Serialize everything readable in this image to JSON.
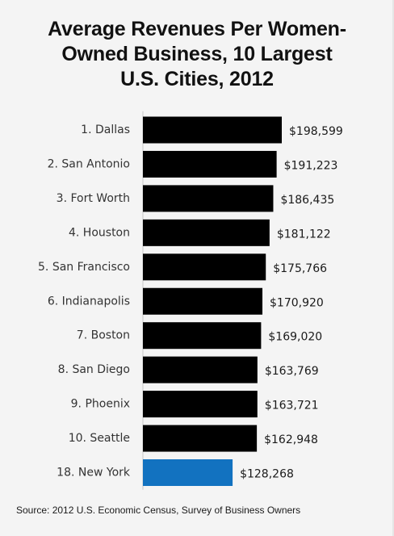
{
  "title_lines": [
    "Average Revenues Per Women-",
    "Owned Business, 10 Largest",
    "U.S. Cities, 2012"
  ],
  "source": "Source: 2012 U.S. Economic Census, Survey of Business Owners",
  "colors": {
    "bar_default": "#000000",
    "bar_highlight": "#1272c0",
    "axis": "#c8c8c8"
  },
  "chart_data": {
    "type": "bar",
    "orientation": "horizontal",
    "title": "Average Revenues Per Women-Owned Business, 10 Largest U.S. Cities, 2012",
    "xlabel": "",
    "ylabel": "",
    "grid": false,
    "xlim": [
      0,
      198599
    ],
    "categories": [
      "1. Dallas",
      "2. San Antonio",
      "3. Fort Worth",
      "4. Houston",
      "5. San Francisco",
      "6. Indianapolis",
      "7. Boston",
      "8. San Diego",
      "9. Phoenix",
      "10. Seattle",
      "18. New York"
    ],
    "values": [
      198599,
      191223,
      186435,
      181122,
      175766,
      170920,
      169020,
      163769,
      163721,
      162948,
      128268
    ],
    "value_labels": [
      "$198,599",
      "$191,223",
      "$186,435",
      "$181,122",
      "$175,766",
      "$170,920",
      "$169,020",
      "$163,769",
      "$163,721",
      "$162,948",
      "$128,268"
    ],
    "highlight_index": 10
  }
}
